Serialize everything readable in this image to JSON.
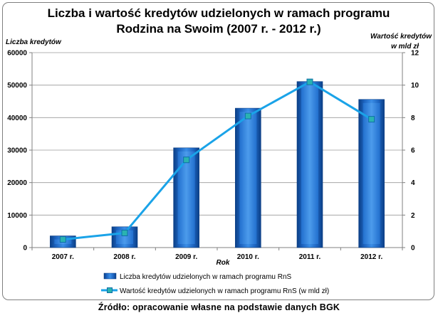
{
  "chart_data": {
    "type": "bar",
    "title_lines": [
      "Liczba i wartość kredytów udzielonych w ramach programu",
      "Rodzina na Swoim (2007 r. - 2012 r.)"
    ],
    "xlabel": "Rok",
    "ylabel_left": "Liczba kredytów",
    "ylabel_right_lines": [
      "Wartość kredytów",
      "w mld zł"
    ],
    "categories": [
      "2007 r.",
      "2008 r.",
      "2009 r.",
      "2010 r.",
      "2011 r.",
      "2012 r."
    ],
    "ylim_left": [
      0,
      60000
    ],
    "yticks_left": [
      0,
      10000,
      20000,
      30000,
      40000,
      50000,
      60000
    ],
    "ylim_right": [
      0,
      12
    ],
    "yticks_right": [
      0,
      2,
      4,
      6,
      8,
      10,
      12
    ],
    "grid": true,
    "legend_position": "bottom",
    "series": [
      {
        "name": "Liczba kredytów udzielonych w ramach programu RnS",
        "kind": "bar",
        "axis": "left",
        "color": "#1f6fc8",
        "values": [
          3600,
          6400,
          30700,
          42900,
          51100,
          45600
        ]
      },
      {
        "name": "Wartość kredytów udzielonych w ramach programu RnS (w mld zł)",
        "kind": "line",
        "axis": "right",
        "color": "#1aa3e8",
        "values": [
          0.5,
          0.9,
          5.4,
          8.1,
          10.2,
          7.9
        ]
      }
    ]
  },
  "source": "Źródło: opracowanie własne na podstawie danych BGK"
}
